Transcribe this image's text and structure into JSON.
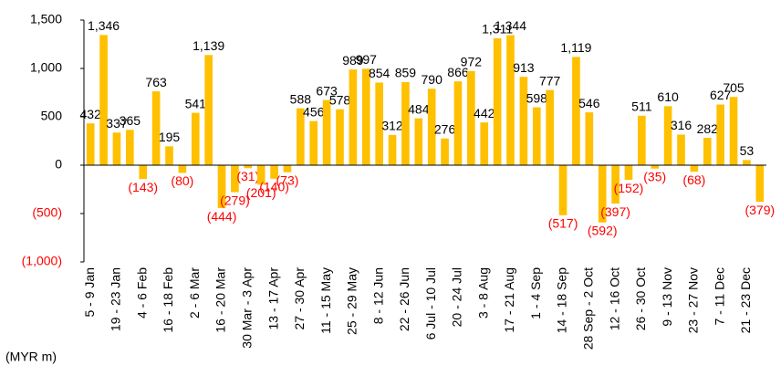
{
  "chart_data": {
    "type": "bar",
    "y_label": "(MYR m)",
    "categories": [
      "5 - 9 Jan",
      null,
      "19 - 23 Jan",
      null,
      "4 - 6 Feb",
      null,
      "16 - 18 Feb",
      null,
      "2 - 6 Mar",
      null,
      "16 - 20 Mar",
      null,
      "30 Mar - 3 Apr",
      null,
      "13 - 17 Apr",
      null,
      "27 - 30 Apr",
      null,
      "11 - 15 May",
      null,
      "25 - 29 May",
      null,
      "8 - 12 Jun",
      null,
      "22 - 26 Jun",
      null,
      "6 Jul - 10 Jul",
      null,
      "20 - 24 Jul",
      null,
      "3 - 8 Aug",
      null,
      "17 - 21 Aug",
      null,
      "1 - 4 Sep",
      null,
      "14 - 18 Sep",
      null,
      "28 Sep - 2 Oct",
      null,
      "12 - 16 Oct",
      null,
      "26 - 30 Oct",
      null,
      "9 - 13 Nov",
      null,
      "23 - 27 Nov",
      null,
      "7 - 11 Dec",
      null,
      "21 - 23 Dec",
      null
    ],
    "values": [
      432,
      1346,
      337,
      365,
      -143,
      763,
      195,
      -80,
      541,
      1139,
      -444,
      -279,
      -31,
      -201,
      -140,
      -73,
      588,
      456,
      673,
      578,
      989,
      997,
      854,
      312,
      859,
      484,
      790,
      276,
      866,
      972,
      442,
      1311,
      1344,
      913,
      598,
      777,
      -517,
      1119,
      546,
      -592,
      -397,
      -152,
      511,
      -35,
      610,
      316,
      -68,
      282,
      627,
      705,
      53,
      -379
    ],
    "value_labels": [
      "432",
      "1,346",
      "337",
      "365",
      "(143)",
      "763",
      "195",
      "(80)",
      "541",
      "1,139",
      "(444)",
      "(279)",
      "(31)",
      "(201)",
      "(140)",
      "(73)",
      "588",
      "456",
      "673",
      "578",
      "989",
      "997",
      "854",
      "312",
      "859",
      "484",
      "790",
      "276",
      "866",
      "972",
      "442",
      "1,311",
      "1,344",
      "913",
      "598",
      "777",
      "(517)",
      "1,119",
      "546",
      "(592)",
      "(397)",
      "(152)",
      "511",
      "(35)",
      "610",
      "316",
      "(68)",
      "282",
      "627",
      "705",
      "53",
      "(379)"
    ],
    "color": "#ffc000",
    "negative_label_color": "#ff0000",
    "ylim": [
      -1000,
      1500
    ],
    "yticks": [
      {
        "value": -1000,
        "label": "(1,000)"
      },
      {
        "value": -500,
        "label": "(500)"
      },
      0,
      500,
      {
        "value": 1000,
        "label": "1,000"
      },
      {
        "value": 1500,
        "label": "1,500"
      }
    ],
    "grid": false
  }
}
